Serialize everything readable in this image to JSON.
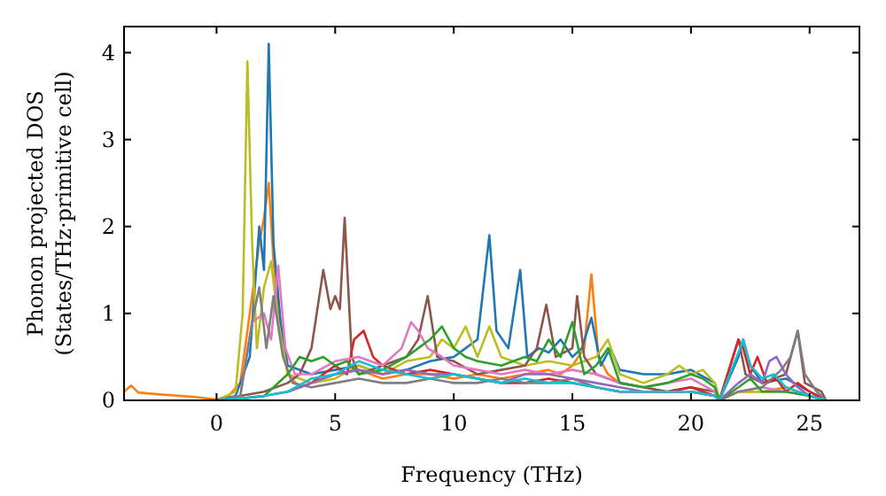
{
  "chart_data": {
    "type": "line",
    "xlabel": "Frequency (THz)",
    "ylabel": "Phonon projected DOS\n(States/THz·primitive cell)",
    "xlim": [
      -3.9,
      27.1
    ],
    "ylim": [
      0,
      4.3
    ],
    "xticks": [
      0,
      5,
      10,
      15,
      20,
      25
    ],
    "yticks": [
      0,
      1,
      2,
      3,
      4
    ],
    "grid": false,
    "marker": "none",
    "line_style": "solid",
    "series": [
      {
        "color": "#ff7f0e",
        "x": [
          -3.9,
          -3.6,
          -3.3,
          -2.5,
          -1,
          0,
          0.5,
          1,
          1.5,
          1.8,
          2.0,
          2.2,
          2.4,
          2.7,
          3.0,
          3.5,
          4,
          5,
          6,
          7,
          8,
          9,
          10,
          11,
          12,
          13,
          14,
          14.5,
          15,
          15.5,
          15.8,
          16.1,
          16.5,
          17,
          18,
          19,
          20,
          21,
          21.2,
          22,
          23,
          24,
          25,
          25.7
        ],
        "values": [
          0.1,
          0.17,
          0.09,
          0.07,
          0.04,
          0.01,
          0.05,
          0.2,
          1.2,
          1.8,
          2.1,
          2.5,
          1.6,
          0.8,
          0.3,
          0.15,
          0.2,
          0.3,
          0.35,
          0.25,
          0.3,
          0.3,
          0.25,
          0.3,
          0.25,
          0.3,
          0.35,
          0.3,
          0.4,
          0.6,
          1.45,
          0.5,
          0.3,
          0.2,
          0.15,
          0.1,
          0.1,
          0.05,
          0,
          0.1,
          0.1,
          0.15,
          0.05,
          0
        ]
      },
      {
        "color": "#1f77b4",
        "x": [
          0,
          0.8,
          1.4,
          1.8,
          2.0,
          2.2,
          2.4,
          2.7,
          3.0,
          4,
          5,
          6,
          7,
          8,
          9,
          10,
          10.5,
          11,
          11.5,
          11.8,
          12.3,
          12.8,
          13.1,
          13.6,
          14,
          14.5,
          15,
          15.4,
          15.8,
          16.2,
          16.6,
          17,
          18,
          19,
          20,
          21,
          21.2,
          22,
          22.2,
          22.5,
          23,
          24,
          25,
          25.7
        ],
        "values": [
          0,
          0.05,
          0.5,
          2.0,
          1.5,
          4.1,
          1.8,
          0.9,
          0.4,
          0.3,
          0.35,
          0.4,
          0.3,
          0.35,
          0.45,
          0.5,
          0.6,
          0.7,
          1.9,
          0.8,
          0.6,
          1.5,
          0.5,
          0.6,
          0.55,
          0.7,
          0.5,
          0.6,
          0.95,
          0.4,
          0.6,
          0.35,
          0.3,
          0.3,
          0.35,
          0.2,
          0,
          0.5,
          0.7,
          0.4,
          0.2,
          0.25,
          0.1,
          0
        ]
      },
      {
        "color": "#bcbd22",
        "x": [
          0,
          0.8,
          1.1,
          1.3,
          1.5,
          1.7,
          2.0,
          2.3,
          2.6,
          3.0,
          4,
          5,
          6,
          7,
          8,
          9,
          9.5,
          10,
          10.5,
          11,
          11.5,
          12,
          13,
          14,
          15,
          16,
          16.5,
          17,
          18,
          19,
          19.5,
          20,
          20.5,
          21,
          21.2,
          22,
          23,
          24
        ],
        "values": [
          0,
          0.1,
          1.0,
          3.9,
          1.8,
          0.6,
          1.3,
          1.6,
          0.9,
          0.3,
          0.2,
          0.25,
          0.4,
          0.3,
          0.45,
          0.5,
          0.7,
          0.6,
          0.85,
          0.5,
          0.85,
          0.5,
          0.4,
          0.45,
          0.4,
          0.5,
          0.7,
          0.3,
          0.2,
          0.3,
          0.4,
          0.3,
          0.35,
          0.2,
          0,
          0.1,
          0.1,
          0.1
        ]
      },
      {
        "color": "#8c564b",
        "x": [
          0,
          1,
          2,
          3,
          3.5,
          4,
          4.5,
          4.8,
          5.0,
          5.2,
          5.4,
          5.7,
          6,
          7,
          8,
          8.5,
          8.9,
          9.3,
          10,
          11,
          12,
          13,
          13.5,
          13.9,
          14.3,
          15,
          15.2,
          15.5,
          16,
          17,
          18,
          19,
          20,
          21,
          21.2,
          22,
          22.3,
          23,
          24,
          24.5,
          24.8,
          25.5,
          25.7
        ],
        "values": [
          0,
          0.05,
          0.1,
          0.2,
          0.3,
          0.6,
          1.5,
          1.05,
          1.2,
          1.05,
          2.1,
          0.5,
          0.3,
          0.4,
          0.5,
          0.7,
          1.2,
          0.5,
          0.45,
          0.3,
          0.35,
          0.4,
          0.6,
          1.1,
          0.5,
          0.6,
          1.2,
          0.5,
          0.3,
          0.2,
          0.15,
          0.1,
          0.15,
          0.1,
          0,
          0.7,
          0.3,
          0.2,
          0.3,
          0.8,
          0.2,
          0.1,
          0
        ]
      },
      {
        "color": "#d62728",
        "x": [
          3,
          4,
          5,
          5.5,
          5.8,
          6.2,
          6.6,
          7,
          8,
          9,
          10,
          11,
          12,
          13,
          14,
          15,
          16,
          17,
          18,
          19,
          20,
          21,
          21.2,
          22,
          22.2,
          22.5,
          22.8,
          23.2,
          23.6,
          24,
          24.5,
          25,
          25.7
        ],
        "values": [
          0.1,
          0.2,
          0.4,
          0.3,
          0.7,
          0.8,
          0.5,
          0.4,
          0.3,
          0.35,
          0.3,
          0.25,
          0.2,
          0.2,
          0.25,
          0.2,
          0.15,
          0.1,
          0.1,
          0.1,
          0.15,
          0.05,
          0,
          0.7,
          0.6,
          0.3,
          0.5,
          0.2,
          0.25,
          0.1,
          0.2,
          0.1,
          0
        ]
      },
      {
        "color": "#e377c2",
        "x": [
          0,
          1,
          1.5,
          2,
          2.3,
          2.6,
          2.9,
          3.3,
          4,
          5,
          6,
          7,
          7.8,
          8.2,
          8.5,
          8.9,
          9.5,
          10,
          11,
          12,
          13,
          14,
          15,
          16,
          17,
          18,
          19,
          20,
          21,
          21.2,
          22,
          23,
          24,
          25,
          25.7
        ],
        "values": [
          0,
          0.05,
          0.9,
          1.0,
          0.7,
          1.55,
          0.6,
          0.3,
          0.3,
          0.45,
          0.5,
          0.4,
          0.6,
          0.9,
          0.8,
          0.6,
          0.5,
          0.4,
          0.35,
          0.3,
          0.35,
          0.3,
          0.35,
          0.3,
          0.2,
          0.15,
          0.2,
          0.25,
          0.1,
          0,
          0.1,
          0.15,
          0.1,
          0.05,
          0
        ]
      },
      {
        "color": "#7f7f7f",
        "x": [
          0,
          1,
          1.5,
          1.8,
          2.1,
          2.4,
          2.8,
          3.2,
          4,
          5,
          6,
          7,
          8,
          9,
          10,
          11,
          12,
          13,
          14,
          15,
          16,
          17,
          18,
          19,
          20,
          21,
          21.2,
          22,
          23,
          23.8,
          24.2,
          24.5,
          24.8,
          25.3,
          25.7
        ],
        "values": [
          0,
          0.05,
          0.9,
          1.3,
          0.6,
          1.2,
          0.5,
          0.2,
          0.15,
          0.2,
          0.25,
          0.2,
          0.2,
          0.25,
          0.2,
          0.2,
          0.25,
          0.2,
          0.2,
          0.25,
          0.15,
          0.1,
          0.1,
          0.1,
          0.1,
          0.05,
          0,
          0.1,
          0.15,
          0.35,
          0.5,
          0.8,
          0.3,
          0.1,
          0
        ]
      },
      {
        "color": "#2ca02c",
        "x": [
          0,
          1,
          2,
          3,
          3.5,
          4,
          4.5,
          5,
          5.5,
          6,
          7,
          8,
          8.5,
          9,
          9.5,
          10,
          10.5,
          11,
          12,
          13,
          13.5,
          14,
          14.5,
          15,
          15.5,
          16,
          16.5,
          17,
          18,
          19,
          20,
          20.5,
          21,
          21.2,
          22,
          22.5,
          23,
          24,
          25,
          25.7
        ],
        "values": [
          0,
          0.02,
          0.05,
          0.3,
          0.5,
          0.45,
          0.5,
          0.4,
          0.45,
          0.3,
          0.35,
          0.5,
          0.6,
          0.7,
          0.85,
          0.6,
          0.5,
          0.45,
          0.4,
          0.5,
          0.45,
          0.7,
          0.5,
          0.9,
          0.3,
          0.4,
          0.6,
          0.2,
          0.15,
          0.2,
          0.3,
          0.25,
          0.15,
          0,
          0.15,
          0.25,
          0.1,
          0.1,
          0.05,
          0
        ]
      },
      {
        "color": "#9467bd",
        "x": [
          0,
          1,
          2,
          3,
          4,
          5,
          6,
          7,
          8,
          9,
          10,
          11,
          12,
          13,
          14,
          15,
          16,
          17,
          18,
          19,
          20,
          21,
          21.2,
          22,
          22.5,
          23,
          23.3,
          23.6,
          24,
          24.5,
          25,
          25.7
        ],
        "values": [
          0,
          0.02,
          0.05,
          0.1,
          0.2,
          0.3,
          0.35,
          0.3,
          0.35,
          0.3,
          0.3,
          0.25,
          0.2,
          0.3,
          0.3,
          0.25,
          0.2,
          0.15,
          0.1,
          0.1,
          0.1,
          0.05,
          0,
          0.2,
          0.3,
          0.2,
          0.45,
          0.5,
          0.3,
          0.15,
          0.05,
          0
        ]
      },
      {
        "color": "#17becf",
        "x": [
          0,
          1,
          2,
          3,
          4,
          5,
          6,
          7,
          8,
          9,
          10,
          11,
          12,
          13,
          14,
          15,
          16,
          17,
          18,
          19,
          20,
          21,
          21.2,
          22,
          22.2,
          22.5,
          23,
          23.5,
          24,
          25,
          25.7
        ],
        "values": [
          0,
          0.02,
          0.05,
          0.1,
          0.25,
          0.3,
          0.45,
          0.35,
          0.3,
          0.25,
          0.3,
          0.25,
          0.2,
          0.25,
          0.2,
          0.2,
          0.15,
          0.1,
          0.1,
          0.1,
          0.1,
          0.05,
          0,
          0.55,
          0.7,
          0.4,
          0.25,
          0.3,
          0.15,
          0.05,
          0
        ]
      }
    ]
  }
}
